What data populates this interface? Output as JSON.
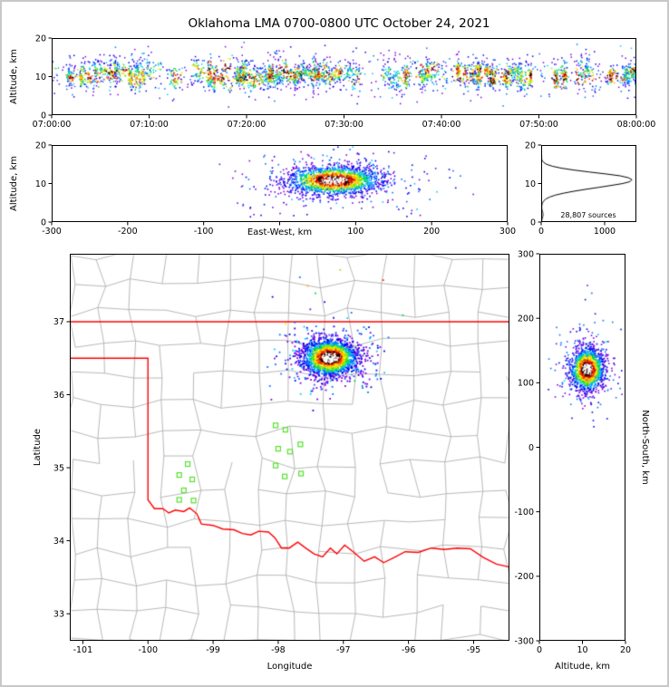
{
  "title": "Oklahoma LMA 0700-0800 UTC October 24, 2021",
  "palette": {
    "density_low_to_high": [
      "#7d00e6",
      "#0000ee",
      "#0070ff",
      "#00c8ff",
      "#00dd44",
      "#a0e800",
      "#ffee00",
      "#ffa500",
      "#ff3000",
      "#b40000",
      "#000000"
    ],
    "core_white": "#ffffff",
    "state_border": "#ff0000",
    "county_lines": "#b0b0b0",
    "station_marker": "#55e12e",
    "histogram_line": "#000000",
    "axis": "#000000",
    "figure_border": "#c8c8c8"
  },
  "chart_data": [
    {
      "id": "time-height",
      "type": "scatter",
      "ylabel": "Altitude, km",
      "xlim_seconds": [
        0,
        3600
      ],
      "x_tick_seconds": [
        0,
        600,
        1200,
        1800,
        2400,
        3000,
        3600
      ],
      "x_tick_labels": [
        "07:00:00",
        "07:10:00",
        "07:20:00",
        "07:30:00",
        "07:40:00",
        "07:50:00",
        "08:00:00"
      ],
      "ylim": [
        0,
        20
      ],
      "y_ticks": [
        0,
        10,
        20
      ],
      "y_tick_labels": [
        "0",
        "10",
        "20"
      ],
      "description": "VHF lightning sources altitude vs time; quasi-continuous band 5-16 km centered near 11 km across the full hour with dense vertical streaks",
      "generation": {
        "n_streaks": 150,
        "band_center_km": 10.8,
        "background_points": 700
      }
    },
    {
      "id": "east-west-height",
      "type": "scatter",
      "xlabel": "East-West, km",
      "ylabel": "Altitude, km",
      "xlim": [
        -300,
        300
      ],
      "x_ticks": [
        -300,
        -200,
        -100,
        0,
        100,
        200,
        300
      ],
      "x_tick_labels": [
        "-300",
        "-200",
        "-100",
        "",
        "100",
        "200",
        "300"
      ],
      "ylim": [
        0,
        20
      ],
      "y_ticks": [
        0,
        10,
        20
      ],
      "y_tick_labels": [
        "0",
        "10",
        "20"
      ],
      "description": "Dense storm cell centered near +70 km east, 11 km altitude",
      "cluster": {
        "center_km": 70,
        "sigma_km": 30,
        "alt_center_km": 11,
        "alt_sigma_km": 1.8,
        "core_points": 1500,
        "halo_points": 400,
        "outlier_points": 50
      }
    },
    {
      "id": "altitude-histogram",
      "type": "line",
      "annotation": "28,807 sources",
      "xlim": [
        0,
        1500
      ],
      "x_ticks": [
        0,
        1000
      ],
      "x_tick_labels": [
        "0",
        "1000"
      ],
      "ylim": [
        0,
        20
      ],
      "y_ticks": [
        0,
        10,
        20
      ],
      "y_tick_labels": [
        "0",
        "10",
        "20"
      ],
      "description": "Source-count profile vs altitude peaking near 11 km",
      "profile_altitude_km": [
        0,
        0.5,
        1,
        1.5,
        2,
        2.5,
        3,
        3.5,
        4,
        4.5,
        5,
        5.5,
        6,
        6.5,
        7,
        7.5,
        8,
        8.5,
        9,
        9.5,
        10,
        10.5,
        11,
        11.5,
        12,
        12.5,
        13,
        13.5,
        14,
        14.5,
        15,
        15.5,
        16,
        16.5,
        17,
        17.5
      ],
      "profile_counts": [
        5,
        10,
        18,
        26,
        30,
        24,
        16,
        10,
        8,
        12,
        22,
        40,
        75,
        135,
        225,
        355,
        515,
        700,
        905,
        1100,
        1285,
        1400,
        1430,
        1375,
        1245,
        1015,
        755,
        515,
        315,
        175,
        85,
        38,
        14,
        5,
        2,
        0
      ]
    },
    {
      "id": "plan-view-map",
      "type": "scatter",
      "xlabel": "Longitude",
      "ylabel": "Latitude",
      "xlim": [
        -101.2,
        -94.45
      ],
      "x_ticks": [
        -101,
        -100,
        -99,
        -98,
        -97,
        -96,
        -95
      ],
      "x_tick_labels": [
        "-101",
        "-100",
        "-99",
        "-98",
        "-97",
        "-96",
        "-95"
      ],
      "ylim": [
        32.63,
        37.93
      ],
      "y_ticks": [
        33,
        34,
        35,
        36,
        37
      ],
      "y_tick_labels": [
        "33",
        "34",
        "35",
        "36",
        "37"
      ],
      "description": "Oklahoma map with gray county lines, red state border, green LMA station squares, and a dense lightning cluster near -97.2, 36.5",
      "state_border_polylines": [
        [
          [
            -101.2,
            37.0
          ],
          [
            -94.45,
            37.0
          ]
        ],
        [
          [
            -101.2,
            36.5
          ],
          [
            -100.0,
            36.5
          ],
          [
            -100.0,
            34.56
          ],
          [
            -99.9,
            34.44
          ],
          [
            -99.77,
            34.44
          ],
          [
            -99.68,
            34.38
          ],
          [
            -99.58,
            34.42
          ],
          [
            -99.45,
            34.4
          ],
          [
            -99.36,
            34.45
          ],
          [
            -99.25,
            34.37
          ],
          [
            -99.18,
            34.23
          ],
          [
            -99.0,
            34.21
          ],
          [
            -98.85,
            34.16
          ],
          [
            -98.68,
            34.15
          ],
          [
            -98.55,
            34.1
          ],
          [
            -98.42,
            34.08
          ],
          [
            -98.3,
            34.13
          ],
          [
            -98.15,
            34.12
          ],
          [
            -98.05,
            34.04
          ],
          [
            -97.95,
            33.9
          ],
          [
            -97.83,
            33.9
          ],
          [
            -97.7,
            33.98
          ],
          [
            -97.58,
            33.9
          ],
          [
            -97.45,
            33.82
          ],
          [
            -97.32,
            33.78
          ],
          [
            -97.2,
            33.9
          ],
          [
            -97.1,
            33.82
          ],
          [
            -96.98,
            33.94
          ],
          [
            -96.85,
            33.85
          ],
          [
            -96.68,
            33.72
          ],
          [
            -96.52,
            33.78
          ],
          [
            -96.38,
            33.7
          ],
          [
            -96.2,
            33.78
          ],
          [
            -96.05,
            33.85
          ],
          [
            -95.85,
            33.84
          ],
          [
            -95.65,
            33.9
          ],
          [
            -95.45,
            33.88
          ],
          [
            -95.25,
            33.9
          ],
          [
            -95.05,
            33.89
          ],
          [
            -94.85,
            33.77
          ],
          [
            -94.65,
            33.68
          ],
          [
            -94.45,
            33.64
          ]
        ]
      ],
      "stations_lon_lat": [
        [
          -98.04,
          35.58
        ],
        [
          -97.89,
          35.52
        ],
        [
          -97.66,
          35.32
        ],
        [
          -98.0,
          35.26
        ],
        [
          -97.82,
          35.22
        ],
        [
          -98.04,
          35.03
        ],
        [
          -97.9,
          34.88
        ],
        [
          -97.65,
          34.92
        ],
        [
          -99.39,
          35.05
        ],
        [
          -99.52,
          34.9
        ],
        [
          -99.32,
          34.84
        ],
        [
          -99.45,
          34.69
        ],
        [
          -99.52,
          34.56
        ],
        [
          -99.3,
          34.55
        ]
      ],
      "cluster": {
        "center_lon": -97.22,
        "center_lat": 36.52,
        "sigma_lon": 0.205,
        "sigma_lat": 0.12,
        "core_points": 1700,
        "halo_points": 350
      },
      "sparse_sources_lon_lat_coloridx": [
        [
          -97.68,
          37.62,
          2
        ],
        [
          -97.56,
          37.5,
          7
        ],
        [
          -97.44,
          37.4,
          4
        ],
        [
          -97.3,
          37.28,
          1
        ],
        [
          -97.52,
          37.18,
          0
        ],
        [
          -96.95,
          37.06,
          3
        ],
        [
          -97.06,
          37.72,
          5
        ],
        [
          -96.4,
          37.58,
          8
        ],
        [
          -97.9,
          36.98,
          6
        ],
        [
          -96.55,
          36.82,
          2
        ],
        [
          -98.1,
          37.35,
          1
        ],
        [
          -96.1,
          37.1,
          4
        ]
      ],
      "county_grid": {
        "cols": 14,
        "rows": 13,
        "jitter_deg": 0.09,
        "edge_keep_probability": 0.9
      }
    },
    {
      "id": "north-south-height",
      "type": "scatter",
      "xlabel": "Altitude, km",
      "ylabel": "North-South, km",
      "xlim": [
        0,
        20
      ],
      "x_ticks": [
        0,
        10,
        20
      ],
      "x_tick_labels": [
        "0",
        "10",
        "20"
      ],
      "ylim": [
        -300,
        300
      ],
      "y_ticks": [
        -300,
        -200,
        -100,
        0,
        100,
        200,
        300
      ],
      "y_tick_labels": [
        "-300",
        "-200",
        "-100",
        "0",
        "100",
        "200",
        "300"
      ],
      "description": "Same storm cell seen north-south: centered near +122 km north, 11 km altitude",
      "cluster": {
        "center_ns_km": 122,
        "sigma_ns_km": 16,
        "alt_center_km": 11,
        "alt_sigma_km": 1.9,
        "core_points": 1300,
        "halo_points": 300
      },
      "outlier_sources_alt_ns": [
        [
          11,
          252
        ],
        [
          12,
          240
        ],
        [
          10.5,
          230
        ],
        [
          12.8,
          208
        ],
        [
          9.2,
          192
        ],
        [
          13.5,
          176
        ],
        [
          8.2,
          166
        ],
        [
          11.8,
          160
        ]
      ]
    }
  ]
}
